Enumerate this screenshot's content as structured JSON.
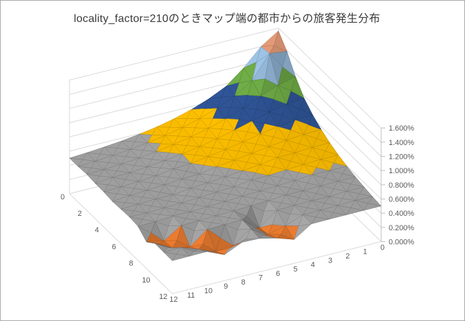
{
  "title": "locality_factor=210のときマップ端の都市からの旅客発生分布",
  "colors": {
    "background": "#ffffff",
    "border": "#a9a9a9",
    "wall_grid": "#d9d9d9",
    "axis_line": "#bfbfbf",
    "tick_label": "#595959",
    "title_text": "#3a3a3a"
  },
  "chart_data": {
    "type": "surface",
    "title": "locality_factor=210のときマップ端の都市からの旅客発生分布",
    "legend": "none",
    "grid": true,
    "x_axis": {
      "tick_labels": [
        "0",
        "2",
        "4",
        "6",
        "8",
        "10",
        "12"
      ],
      "min": 0,
      "max": 12,
      "tick_step": 2
    },
    "depth_axis": {
      "tick_labels": [
        "12",
        "11",
        "10",
        "9",
        "8",
        "7",
        "6",
        "5",
        "4",
        "3",
        "2",
        "1",
        "0"
      ],
      "min": 0,
      "max": 12,
      "tick_step": 1
    },
    "value_axis": {
      "tick_labels": [
        "0.000%",
        "0.200%",
        "0.400%",
        "0.600%",
        "0.800%",
        "1.000%",
        "1.200%",
        "1.400%",
        "1.600%"
      ],
      "min": 0,
      "max": 1.6,
      "step": 0.2,
      "unit": "%"
    },
    "bands": [
      {
        "range": [
          0.0,
          0.2
        ],
        "color": "#4472C4"
      },
      {
        "range": [
          0.2,
          0.4
        ],
        "color": "#ED7D31"
      },
      {
        "range": [
          0.4,
          0.6
        ],
        "color": "#A6A6A6"
      },
      {
        "range": [
          0.6,
          0.8
        ],
        "color": "#FFC000"
      },
      {
        "range": [
          0.8,
          1.0
        ],
        "color": "#2F5597"
      },
      {
        "range": [
          1.0,
          1.2
        ],
        "color": "#70AD47"
      },
      {
        "range": [
          1.2,
          1.4
        ],
        "color": "#9DC3E6"
      },
      {
        "range": [
          1.4,
          1.6
        ],
        "color": "#E59B78"
      }
    ],
    "values_percent": [
      [
        1.56,
        1.4,
        1.16,
        0.965,
        0.848,
        0.758,
        0.688,
        0.634,
        0.593,
        0.56,
        0.536,
        0.516,
        0.501
      ],
      [
        1.39,
        1.42,
        1.1,
        0.944,
        0.836,
        0.75,
        0.683,
        0.631,
        0.591,
        0.559,
        0.535,
        0.515,
        0.501
      ],
      [
        1.15,
        1.09,
        1.0,
        0.891,
        0.803,
        0.729,
        0.669,
        0.622,
        0.584,
        0.554,
        0.531,
        0.513,
        0.51
      ],
      [
        0.965,
        0.944,
        0.891,
        0.824,
        0.758,
        0.699,
        0.649,
        0.608,
        0.574,
        0.547,
        0.526,
        0.52,
        0.497
      ],
      [
        0.848,
        0.836,
        0.803,
        0.758,
        0.71,
        0.665,
        0.625,
        0.591,
        0.575,
        0.539,
        0.52,
        0.505,
        0.494
      ],
      [
        0.758,
        0.75,
        0.729,
        0.699,
        0.665,
        0.631,
        0.6,
        0.558,
        0.549,
        0.529,
        0.513,
        0.5,
        0.478
      ],
      [
        0.688,
        0.683,
        0.669,
        0.663,
        0.625,
        0.6,
        0.576,
        0.554,
        0.536,
        0.507,
        0.506,
        0.495,
        0.486
      ],
      [
        0.634,
        0.631,
        0.622,
        0.608,
        0.591,
        0.585,
        0.554,
        0.538,
        0.523,
        0.509,
        0.499,
        0.49,
        0.493
      ],
      [
        0.593,
        0.591,
        0.596,
        0.574,
        0.562,
        0.549,
        0.536,
        0.523,
        0.511,
        0.501,
        0.503,
        0.484,
        0.478
      ],
      [
        0.56,
        0.559,
        0.554,
        0.547,
        0.55,
        0.529,
        0.519,
        0.509,
        0.501,
        0.493,
        0.486,
        0.33,
        0.375
      ],
      [
        0.536,
        0.535,
        0.52,
        0.526,
        0.52,
        0.513,
        0.325,
        0.499,
        0.492,
        0.486,
        0.3,
        0.345,
        0.47
      ],
      [
        0.516,
        0.525,
        0.513,
        0.509,
        0.505,
        0.41,
        0.35,
        0.49,
        0.315,
        0.295,
        0.385,
        0.471,
        0.467
      ],
      [
        0.501,
        0.501,
        0.499,
        0.497,
        0.494,
        0.335,
        0.415,
        0.472,
        0.478,
        0.365,
        0.47,
        0.467,
        0.464
      ]
    ]
  }
}
